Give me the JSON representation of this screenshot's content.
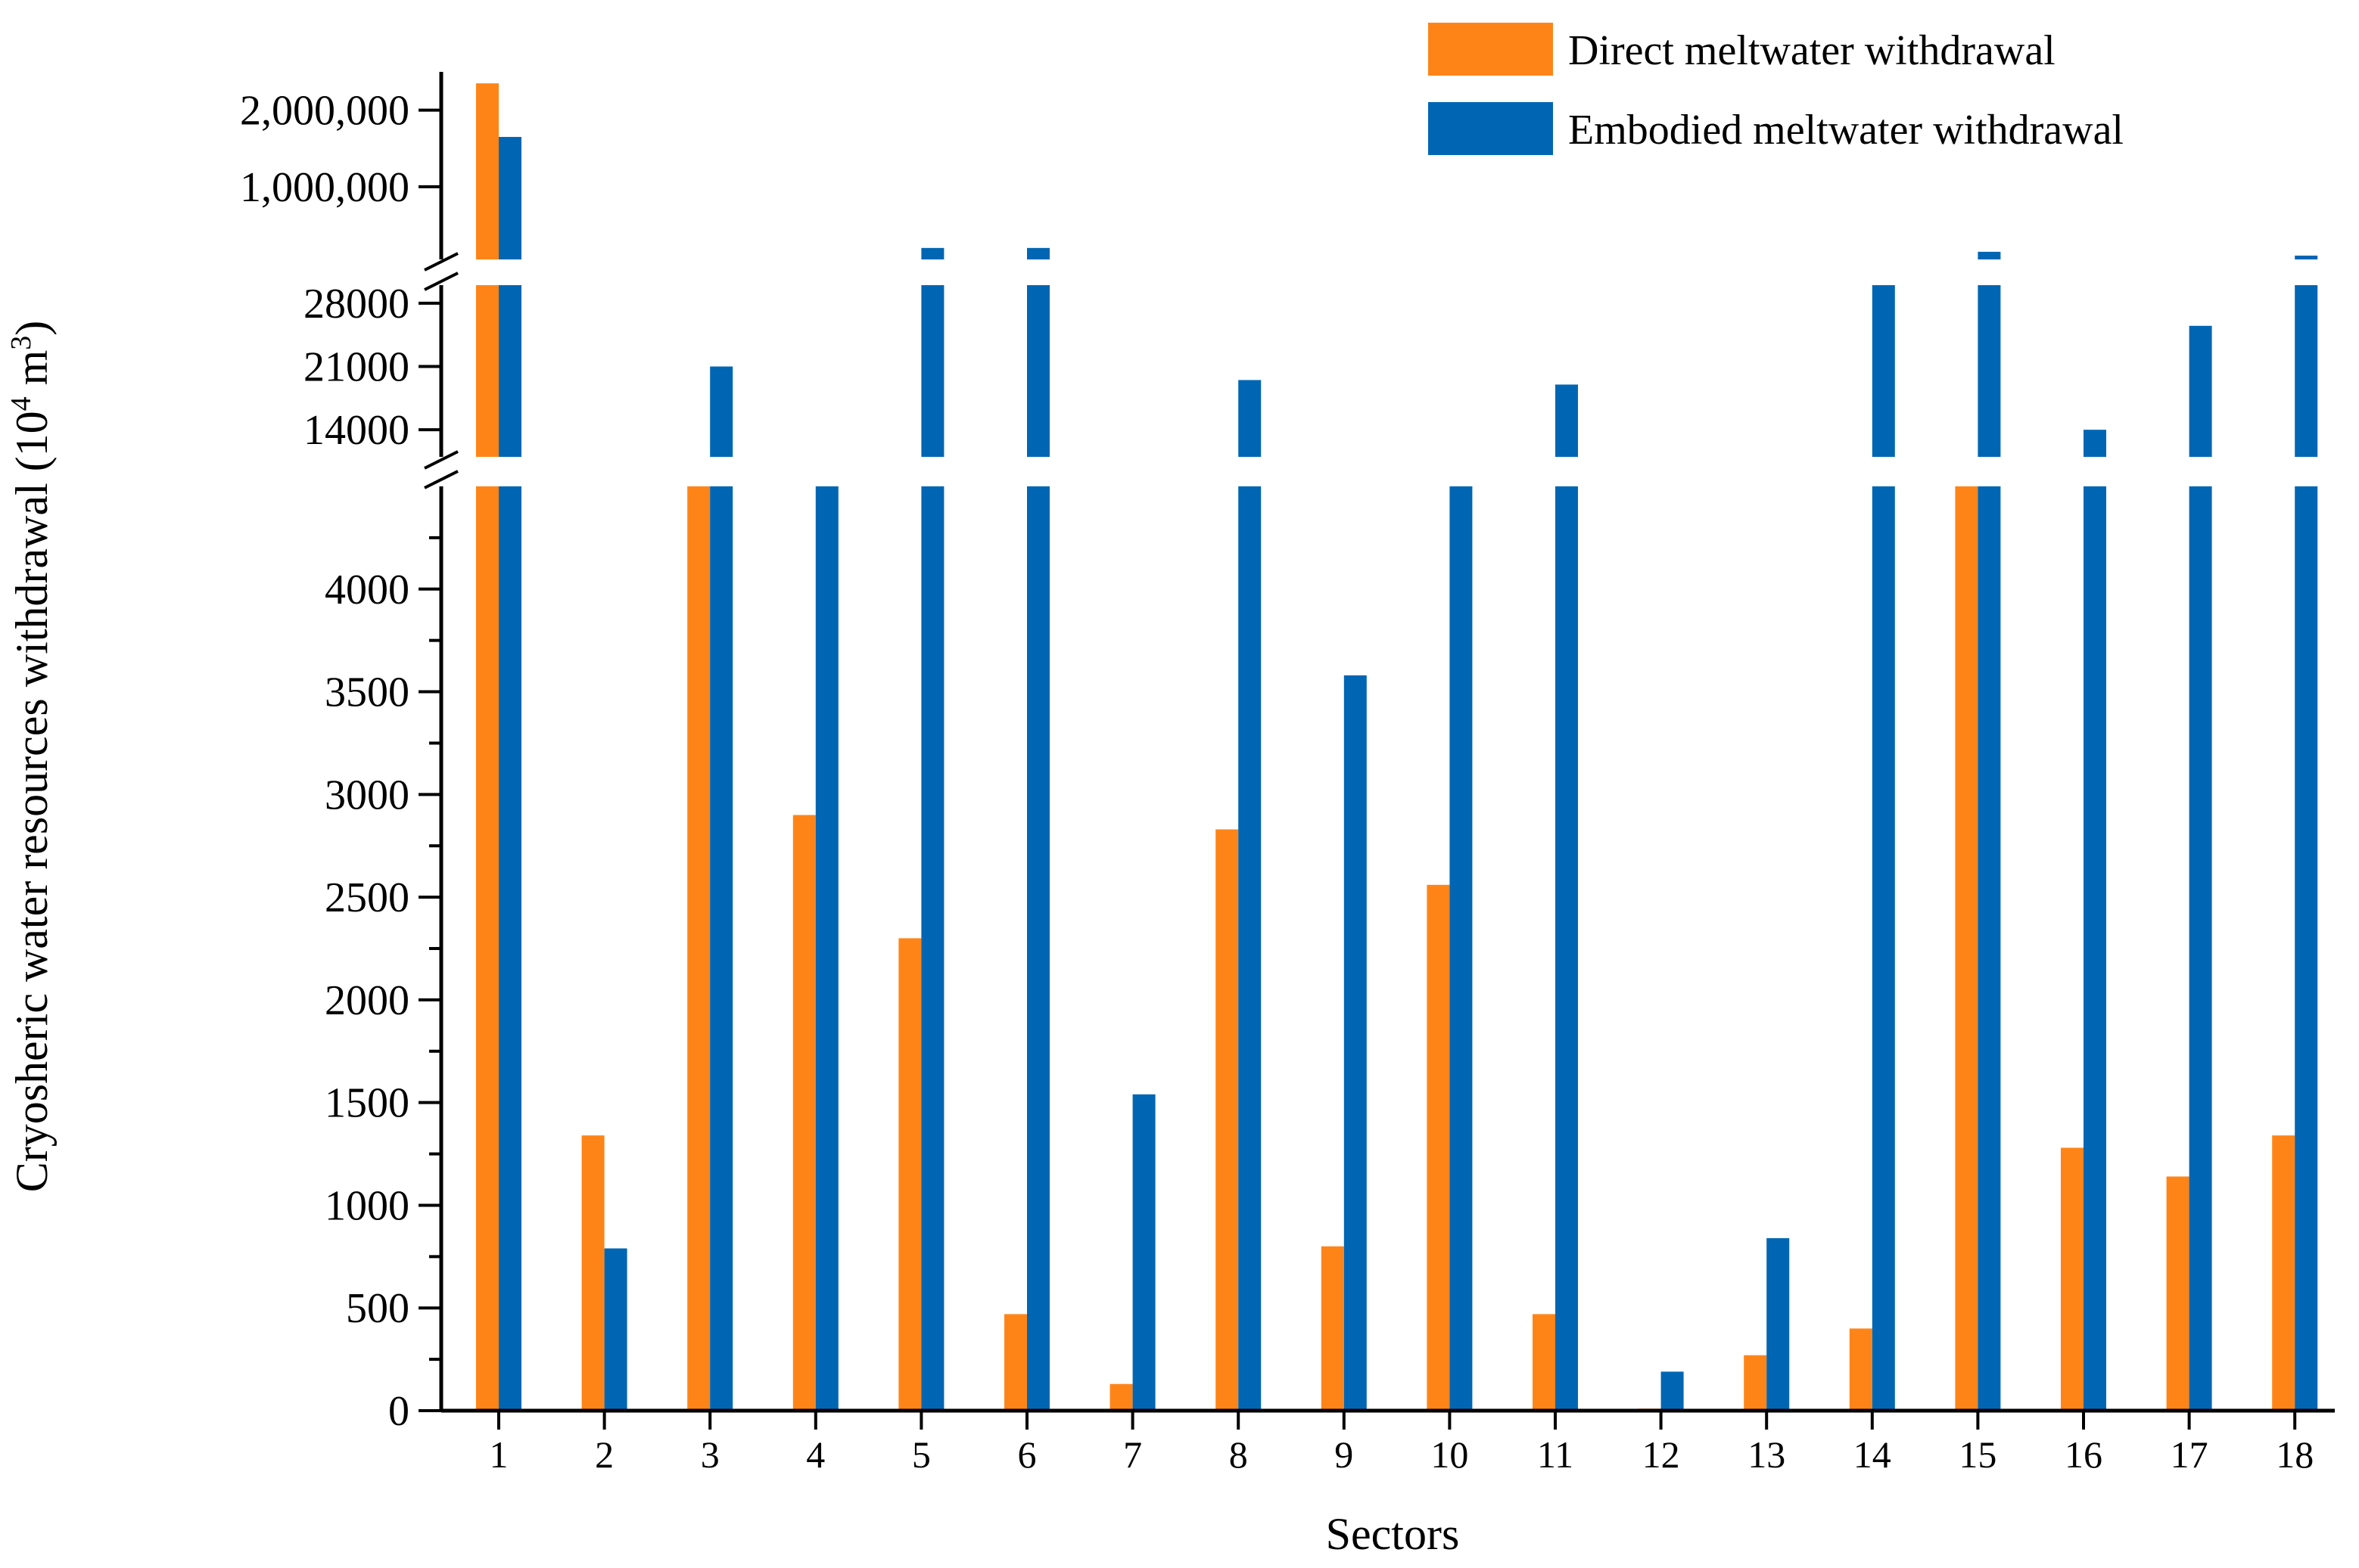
{
  "chart_data": {
    "type": "bar",
    "title": "",
    "xlabel": "Sectors",
    "ylabel": "Cryosheric water resources withdrawal (10",
    "ylabel_exp1": "4",
    "ylabel_mid": " m",
    "ylabel_exp2": "3",
    "ylabel_end": ")",
    "categories": [
      "1",
      "2",
      "3",
      "4",
      "5",
      "6",
      "7",
      "8",
      "9",
      "10",
      "11",
      "12",
      "13",
      "14",
      "15",
      "16",
      "17",
      "18"
    ],
    "series": [
      {
        "name": "Direct meltwater withdrawal",
        "color": "#FF8418",
        "values": [
          2350000,
          1340,
          4500,
          2900,
          2300,
          470,
          130,
          2830,
          800,
          2560,
          470,
          10,
          270,
          400,
          4500,
          1280,
          1140,
          1340
        ]
      },
      {
        "name": "Embodied meltwater withdrawal",
        "color": "#0066B3",
        "values": [
          1650000,
          790,
          21000,
          4500,
          200000,
          200000,
          1540,
          19500,
          3580,
          4500,
          19000,
          190,
          840,
          30000,
          150000,
          14000,
          25500,
          100000
        ]
      }
    ],
    "y_axis_segments": [
      {
        "range": [
          0,
          4500
        ],
        "ticks": [
          "0",
          "500",
          "1000",
          "1500",
          "2000",
          "2500",
          "3000",
          "3500",
          "4000"
        ],
        "tick_values": [
          0,
          500,
          1000,
          1500,
          2000,
          2500,
          3000,
          3500,
          4000
        ]
      },
      {
        "range": [
          11000,
          30000
        ],
        "ticks": [
          "14000",
          "21000",
          "28000"
        ],
        "tick_values": [
          14000,
          21000,
          28000
        ]
      },
      {
        "range": [
          50000,
          2500000
        ],
        "ticks": [
          "1,000,000",
          "2,000,000"
        ],
        "tick_values": [
          1000000,
          2000000
        ]
      }
    ],
    "legend_position": "top-right",
    "grid": false
  }
}
